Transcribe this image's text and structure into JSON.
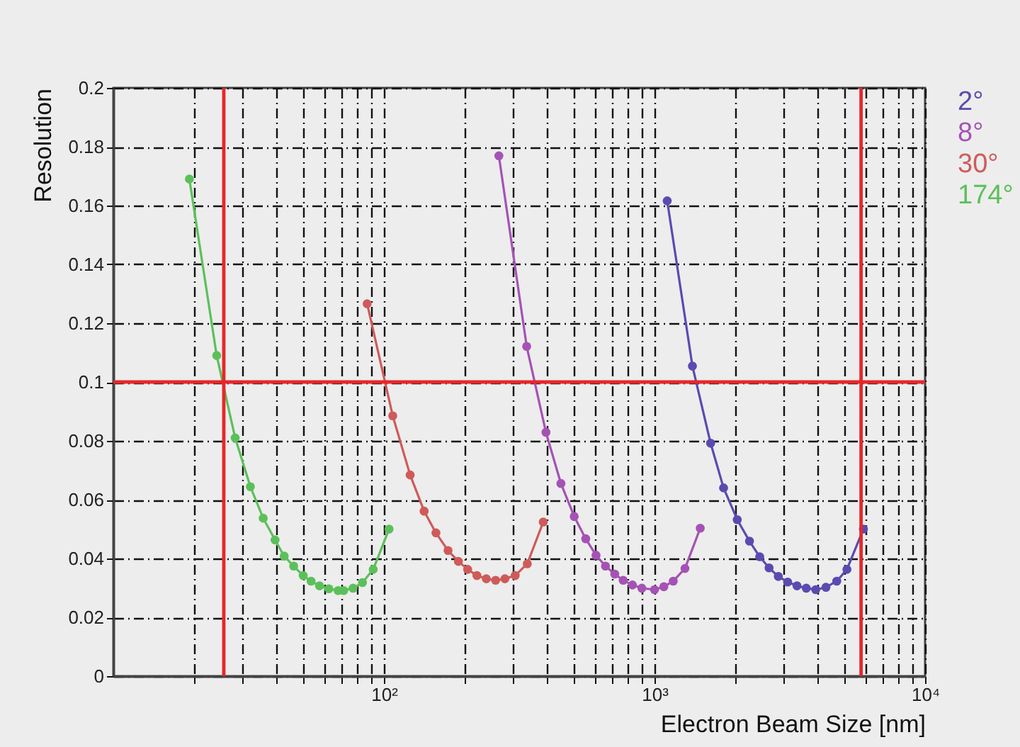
{
  "chart_data": {
    "type": "line",
    "xlabel": "Electron Beam Size [nm]",
    "ylabel": "Resolution",
    "xlim": [
      10,
      10000
    ],
    "ylim": [
      0,
      0.2
    ],
    "xticks": [
      {
        "value": 20,
        "label": null
      },
      {
        "value": 30,
        "label": null
      },
      {
        "value": 40,
        "label": null
      },
      {
        "value": 50,
        "label": null
      },
      {
        "value": 60,
        "label": null
      },
      {
        "value": 70,
        "label": null
      },
      {
        "value": 80,
        "label": null
      },
      {
        "value": 90,
        "label": null
      },
      {
        "value": 100,
        "label": "10²"
      },
      {
        "value": 200,
        "label": null
      },
      {
        "value": 300,
        "label": null
      },
      {
        "value": 400,
        "label": null
      },
      {
        "value": 500,
        "label": null
      },
      {
        "value": 600,
        "label": null
      },
      {
        "value": 700,
        "label": null
      },
      {
        "value": 800,
        "label": null
      },
      {
        "value": 900,
        "label": null
      },
      {
        "value": 1000,
        "label": "10³"
      },
      {
        "value": 2000,
        "label": null
      },
      {
        "value": 3000,
        "label": null
      },
      {
        "value": 4000,
        "label": null
      },
      {
        "value": 5000,
        "label": null
      },
      {
        "value": 6000,
        "label": null
      },
      {
        "value": 7000,
        "label": null
      },
      {
        "value": 8000,
        "label": null
      },
      {
        "value": 9000,
        "label": null
      },
      {
        "value": 10000,
        "label": "10⁴"
      }
    ],
    "yticks": [
      0,
      0.02,
      0.04,
      0.06,
      0.08,
      0.1,
      0.12,
      0.14,
      0.16,
      0.18,
      0.2
    ],
    "log": "x",
    "grid": true,
    "legend": "top right",
    "marker": "circle",
    "line_style": "solid",
    "series": [
      {
        "name": "2°",
        "color": "#5a4bb0",
        "x": [
          1114,
          1381,
          1612,
          1800,
          2022,
          2244,
          2448,
          2651,
          2868,
          3105,
          3362,
          3639,
          3943,
          4302,
          4717,
          5143,
          5917
        ],
        "values": [
          0.1616,
          0.1054,
          0.0792,
          0.064,
          0.0532,
          0.0459,
          0.0406,
          0.0368,
          0.0339,
          0.032,
          0.0307,
          0.0299,
          0.0294,
          0.0302,
          0.0323,
          0.0363,
          0.05
        ]
      },
      {
        "name": "8°",
        "color": "#a552b5",
        "x": [
          266,
          337,
          397,
          451,
          505,
          557,
          608,
          659,
          713,
          766,
          829,
          898,
          1000,
          1083,
          1173,
          1296,
          1476
        ],
        "values": [
          0.1769,
          0.1121,
          0.0829,
          0.0655,
          0.0543,
          0.0467,
          0.0411,
          0.0374,
          0.0347,
          0.0326,
          0.031,
          0.0299,
          0.0294,
          0.0304,
          0.0323,
          0.0366,
          0.0503
        ]
      },
      {
        "name": "30°",
        "color": "#cf5a5a",
        "x": [
          86.7,
          107.8,
          125,
          140.8,
          155.7,
          172.6,
          188.5,
          203.9,
          220.6,
          239,
          258.7,
          280,
          305.7,
          338.7,
          388
        ],
        "values": [
          0.1266,
          0.0885,
          0.0684,
          0.0561,
          0.0487,
          0.0427,
          0.039,
          0.0363,
          0.0342,
          0.0331,
          0.0326,
          0.0331,
          0.0342,
          0.0382,
          0.0524
        ]
      },
      {
        "name": "174°",
        "color": "#5cc05a",
        "x": [
          19.1,
          24.1,
          28.2,
          32.1,
          35.8,
          39.6,
          42.8,
          46.4,
          50.3,
          53.8,
          57.8,
          62.6,
          67.7,
          71,
          76.9,
          83.3,
          91.3,
          104.5
        ],
        "values": [
          0.169,
          0.109,
          0.081,
          0.0644,
          0.0537,
          0.0463,
          0.0408,
          0.0374,
          0.0342,
          0.0323,
          0.0307,
          0.0297,
          0.0291,
          0.0291,
          0.0299,
          0.0318,
          0.0363,
          0.05
        ]
      }
    ],
    "ref_lines": [
      {
        "axis": "x",
        "value": 25.6,
        "color": "#e8262a"
      },
      {
        "axis": "x",
        "value": 5800,
        "color": "#e8262a"
      },
      {
        "axis": "y",
        "value": 0.1,
        "color": "#e8262a"
      }
    ]
  }
}
